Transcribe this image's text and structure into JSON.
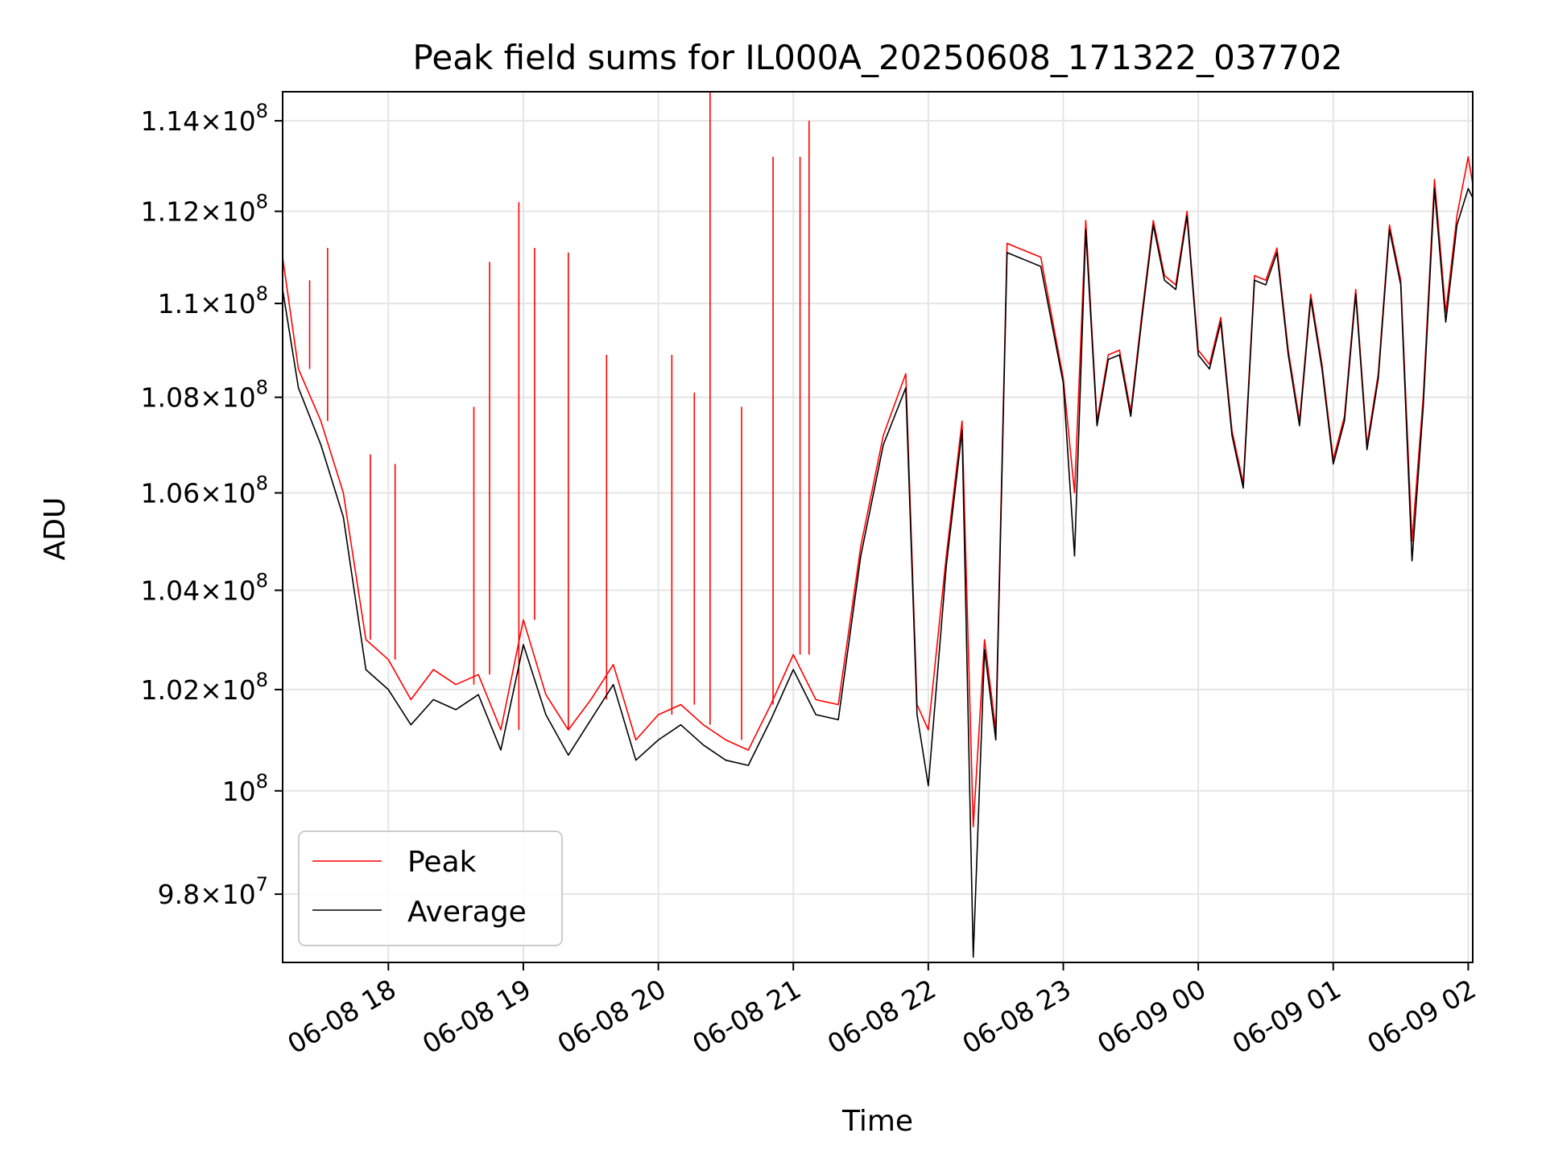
{
  "chart_data": {
    "type": "line",
    "title": "Peak field sums for IL000A_20250608_171322_037702",
    "xlabel": "Time",
    "ylabel": "ADU",
    "x_tick_labels": [
      "06-08 18",
      "06-08 19",
      "06-08 20",
      "06-08 21",
      "06-08 22",
      "06-08 23",
      "06-09 00",
      "06-09 01",
      "06-09 02"
    ],
    "x_tick_values": [
      "2025-06-08 18:00",
      "2025-06-08 19:00",
      "2025-06-08 20:00",
      "2025-06-08 21:00",
      "2025-06-08 22:00",
      "2025-06-08 23:00",
      "2025-06-09 00:00",
      "2025-06-09 01:00",
      "2025-06-09 02:00"
    ],
    "xlim": [
      "2025-06-08 17:13",
      "2025-06-09 02:02"
    ],
    "y_scale": "log",
    "ylim": [
      96700000,
      114650000
    ],
    "y_ticks": [
      {
        "value": 98000000,
        "mantissa": "9.8",
        "exponent": "7"
      },
      {
        "value": 100000000,
        "mantissa": "",
        "exponent": "8"
      },
      {
        "value": 102000000,
        "mantissa": "1.02",
        "exponent": "8"
      },
      {
        "value": 104000000,
        "mantissa": "1.04",
        "exponent": "8"
      },
      {
        "value": 106000000,
        "mantissa": "1.06",
        "exponent": "8"
      },
      {
        "value": 108000000,
        "mantissa": "1.08",
        "exponent": "8"
      },
      {
        "value": 110000000,
        "mantissa": "1.1",
        "exponent": "8"
      },
      {
        "value": 112000000,
        "mantissa": "1.12",
        "exponent": "8"
      },
      {
        "value": 114000000,
        "mantissa": "1.14",
        "exponent": "8"
      }
    ],
    "grid": true,
    "legend_position": "lower-left",
    "series": [
      {
        "name": "Peak",
        "color": "#ff0000",
        "x": [
          "2025-06-08 17:13",
          "2025-06-08 17:20",
          "2025-06-08 17:30",
          "2025-06-08 17:40",
          "2025-06-08 17:50",
          "2025-06-08 18:00",
          "2025-06-08 18:10",
          "2025-06-08 18:20",
          "2025-06-08 18:30",
          "2025-06-08 18:40",
          "2025-06-08 18:50",
          "2025-06-08 19:00",
          "2025-06-08 19:10",
          "2025-06-08 19:20",
          "2025-06-08 19:30",
          "2025-06-08 19:40",
          "2025-06-08 19:50",
          "2025-06-08 20:00",
          "2025-06-08 20:10",
          "2025-06-08 20:20",
          "2025-06-08 20:30",
          "2025-06-08 20:40",
          "2025-06-08 20:50",
          "2025-06-08 21:00",
          "2025-06-08 21:10",
          "2025-06-08 21:20",
          "2025-06-08 21:30",
          "2025-06-08 21:40",
          "2025-06-08 21:50",
          "2025-06-08 21:55",
          "2025-06-08 22:00",
          "2025-06-08 22:08",
          "2025-06-08 22:15",
          "2025-06-08 22:20",
          "2025-06-08 22:25",
          "2025-06-08 22:30",
          "2025-06-08 22:35",
          "2025-06-08 22:40",
          "2025-06-08 22:50",
          "2025-06-08 23:00",
          "2025-06-08 23:05",
          "2025-06-08 23:10",
          "2025-06-08 23:15",
          "2025-06-08 23:20",
          "2025-06-08 23:25",
          "2025-06-08 23:30",
          "2025-06-08 23:35",
          "2025-06-08 23:40",
          "2025-06-08 23:45",
          "2025-06-08 23:50",
          "2025-06-08 23:55",
          "2025-06-09 00:00",
          "2025-06-09 00:05",
          "2025-06-09 00:10",
          "2025-06-09 00:15",
          "2025-06-09 00:20",
          "2025-06-09 00:25",
          "2025-06-09 00:30",
          "2025-06-09 00:35",
          "2025-06-09 00:40",
          "2025-06-09 00:45",
          "2025-06-09 00:50",
          "2025-06-09 00:55",
          "2025-06-09 01:00",
          "2025-06-09 01:05",
          "2025-06-09 01:10",
          "2025-06-09 01:15",
          "2025-06-09 01:20",
          "2025-06-09 01:25",
          "2025-06-09 01:30",
          "2025-06-09 01:35",
          "2025-06-09 01:40",
          "2025-06-09 01:45",
          "2025-06-09 01:50",
          "2025-06-09 01:55",
          "2025-06-09 02:00",
          "2025-06-09 02:02"
        ],
        "y": [
          111000000,
          108600000,
          107500000,
          106000000,
          103000000,
          102600000,
          101800000,
          102400000,
          102100000,
          102300000,
          101200000,
          103400000,
          101900000,
          101200000,
          101800000,
          102500000,
          101000000,
          101500000,
          101700000,
          101300000,
          101000000,
          100800000,
          101700000,
          102700000,
          101800000,
          101700000,
          104900000,
          107200000,
          108500000,
          101700000,
          101200000,
          104700000,
          107500000,
          99300000,
          103000000,
          101200000,
          111300000,
          111200000,
          111000000,
          108400000,
          106000000,
          111800000,
          107500000,
          108900000,
          109000000,
          107700000,
          109800000,
          111800000,
          110600000,
          110400000,
          112000000,
          109000000,
          108700000,
          109700000,
          107300000,
          106200000,
          110600000,
          110500000,
          111200000,
          109000000,
          107500000,
          110200000,
          108700000,
          106700000,
          107600000,
          110300000,
          107000000,
          108500000,
          111700000,
          110500000,
          105000000,
          108000000,
          112700000,
          109800000,
          111900000,
          113200000,
          112600000
        ],
        "spikes": [
          {
            "x": "2025-06-08 17:25",
            "y": 110500000
          },
          {
            "x": "2025-06-08 17:33",
            "y": 111200000
          },
          {
            "x": "2025-06-08 17:52",
            "y": 106800000
          },
          {
            "x": "2025-06-08 18:03",
            "y": 106600000
          },
          {
            "x": "2025-06-08 18:38",
            "y": 107800000
          },
          {
            "x": "2025-06-08 18:45",
            "y": 110900000
          },
          {
            "x": "2025-06-08 18:58",
            "y": 112200000
          },
          {
            "x": "2025-06-08 19:05",
            "y": 111200000
          },
          {
            "x": "2025-06-08 19:20",
            "y": 111100000
          },
          {
            "x": "2025-06-08 19:37",
            "y": 108900000
          },
          {
            "x": "2025-06-08 20:06",
            "y": 108900000
          },
          {
            "x": "2025-06-08 20:16",
            "y": 108100000
          },
          {
            "x": "2025-06-08 20:23",
            "y": 114650000
          },
          {
            "x": "2025-06-08 20:37",
            "y": 107800000
          },
          {
            "x": "2025-06-08 20:51",
            "y": 113200000
          },
          {
            "x": "2025-06-08 21:03",
            "y": 113200000
          },
          {
            "x": "2025-06-08 21:07",
            "y": 114000000
          }
        ]
      },
      {
        "name": "Average",
        "color": "#000000",
        "x": [
          "2025-06-08 17:13",
          "2025-06-08 17:20",
          "2025-06-08 17:30",
          "2025-06-08 17:40",
          "2025-06-08 17:50",
          "2025-06-08 18:00",
          "2025-06-08 18:10",
          "2025-06-08 18:20",
          "2025-06-08 18:30",
          "2025-06-08 18:40",
          "2025-06-08 18:50",
          "2025-06-08 19:00",
          "2025-06-08 19:10",
          "2025-06-08 19:20",
          "2025-06-08 19:30",
          "2025-06-08 19:40",
          "2025-06-08 19:50",
          "2025-06-08 20:00",
          "2025-06-08 20:10",
          "2025-06-08 20:20",
          "2025-06-08 20:30",
          "2025-06-08 20:40",
          "2025-06-08 20:50",
          "2025-06-08 21:00",
          "2025-06-08 21:10",
          "2025-06-08 21:20",
          "2025-06-08 21:30",
          "2025-06-08 21:40",
          "2025-06-08 21:50",
          "2025-06-08 21:55",
          "2025-06-08 22:00",
          "2025-06-08 22:08",
          "2025-06-08 22:15",
          "2025-06-08 22:20",
          "2025-06-08 22:25",
          "2025-06-08 22:30",
          "2025-06-08 22:35",
          "2025-06-08 22:40",
          "2025-06-08 22:50",
          "2025-06-08 23:00",
          "2025-06-08 23:05",
          "2025-06-08 23:10",
          "2025-06-08 23:15",
          "2025-06-08 23:20",
          "2025-06-08 23:25",
          "2025-06-08 23:30",
          "2025-06-08 23:35",
          "2025-06-08 23:40",
          "2025-06-08 23:45",
          "2025-06-08 23:50",
          "2025-06-08 23:55",
          "2025-06-09 00:00",
          "2025-06-09 00:05",
          "2025-06-09 00:10",
          "2025-06-09 00:15",
          "2025-06-09 00:20",
          "2025-06-09 00:25",
          "2025-06-09 00:30",
          "2025-06-09 00:35",
          "2025-06-09 00:40",
          "2025-06-09 00:45",
          "2025-06-09 00:50",
          "2025-06-09 00:55",
          "2025-06-09 01:00",
          "2025-06-09 01:05",
          "2025-06-09 01:10",
          "2025-06-09 01:15",
          "2025-06-09 01:20",
          "2025-06-09 01:25",
          "2025-06-09 01:30",
          "2025-06-09 01:35",
          "2025-06-09 01:40",
          "2025-06-09 01:45",
          "2025-06-09 01:50",
          "2025-06-09 01:55",
          "2025-06-09 02:00",
          "2025-06-09 02:02"
        ],
        "y": [
          110300000,
          108200000,
          107000000,
          105500000,
          102400000,
          102000000,
          101300000,
          101800000,
          101600000,
          101900000,
          100800000,
          102900000,
          101500000,
          100700000,
          101400000,
          102100000,
          100600000,
          101000000,
          101300000,
          100900000,
          100600000,
          100500000,
          101400000,
          102400000,
          101500000,
          101400000,
          104700000,
          107000000,
          108200000,
          101500000,
          100100000,
          104500000,
          107300000,
          96800000,
          102800000,
          101000000,
          111100000,
          111000000,
          110800000,
          108300000,
          104700000,
          111600000,
          107400000,
          108800000,
          108900000,
          107600000,
          109700000,
          111700000,
          110500000,
          110300000,
          111900000,
          108900000,
          108600000,
          109600000,
          107200000,
          106100000,
          110500000,
          110400000,
          111100000,
          108900000,
          107400000,
          110100000,
          108600000,
          106600000,
          107500000,
          110200000,
          106900000,
          108400000,
          111600000,
          110400000,
          104600000,
          107800000,
          112500000,
          109600000,
          111700000,
          112500000,
          112300000
        ]
      }
    ]
  }
}
